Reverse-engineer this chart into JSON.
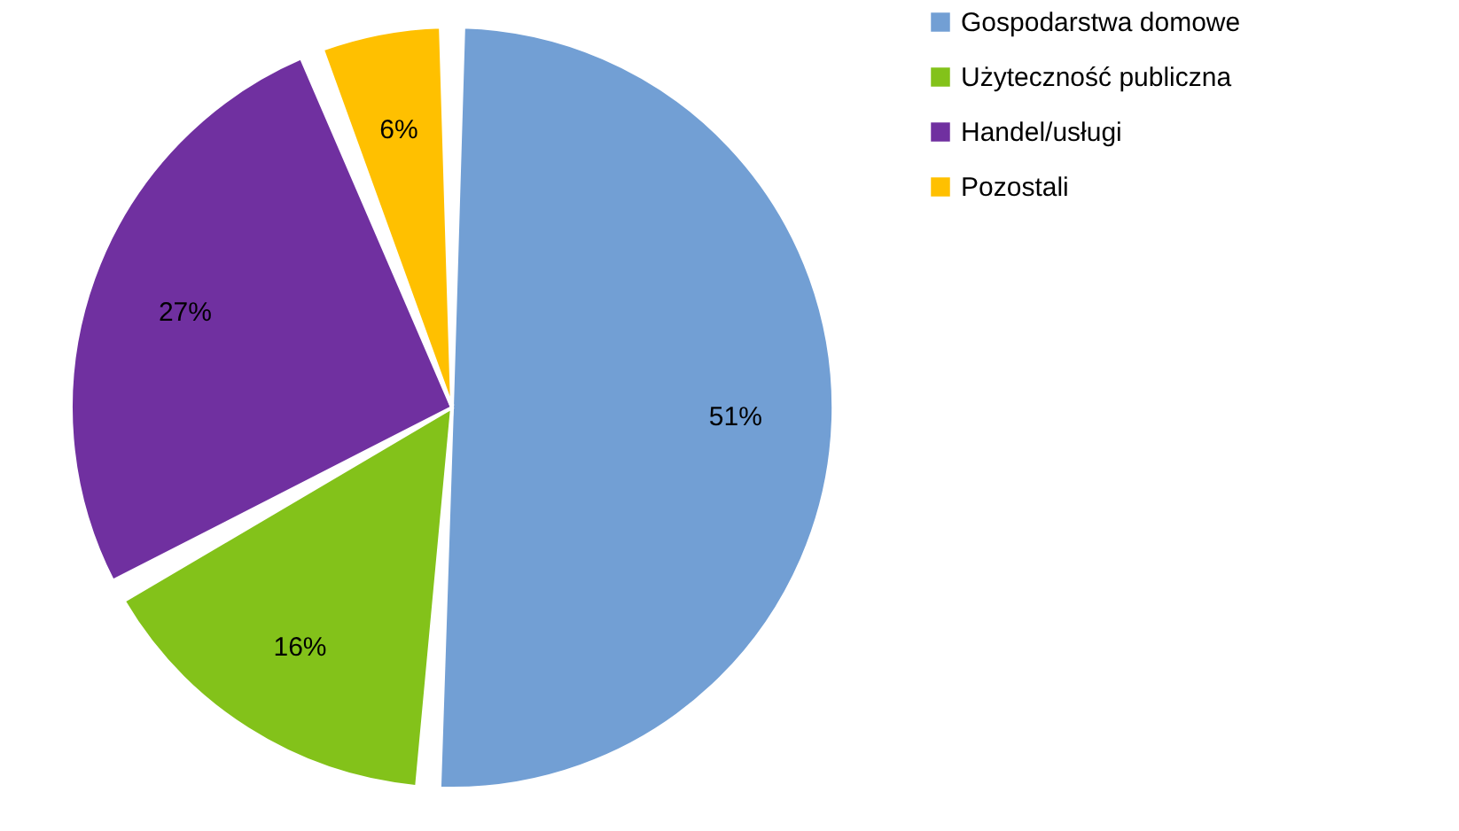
{
  "chart_data": {
    "type": "pie",
    "categories": [
      "Gospodarstwa domowe",
      "Użyteczność publiczna",
      "Handel/usługi",
      "Pozostali"
    ],
    "values": [
      51,
      16,
      27,
      6
    ],
    "colors": [
      "#729fd4",
      "#83c21a",
      "#7030a0",
      "#ffc000"
    ],
    "value_labels": [
      "51%",
      "16%",
      "27%",
      "6%"
    ],
    "legend": "right"
  }
}
